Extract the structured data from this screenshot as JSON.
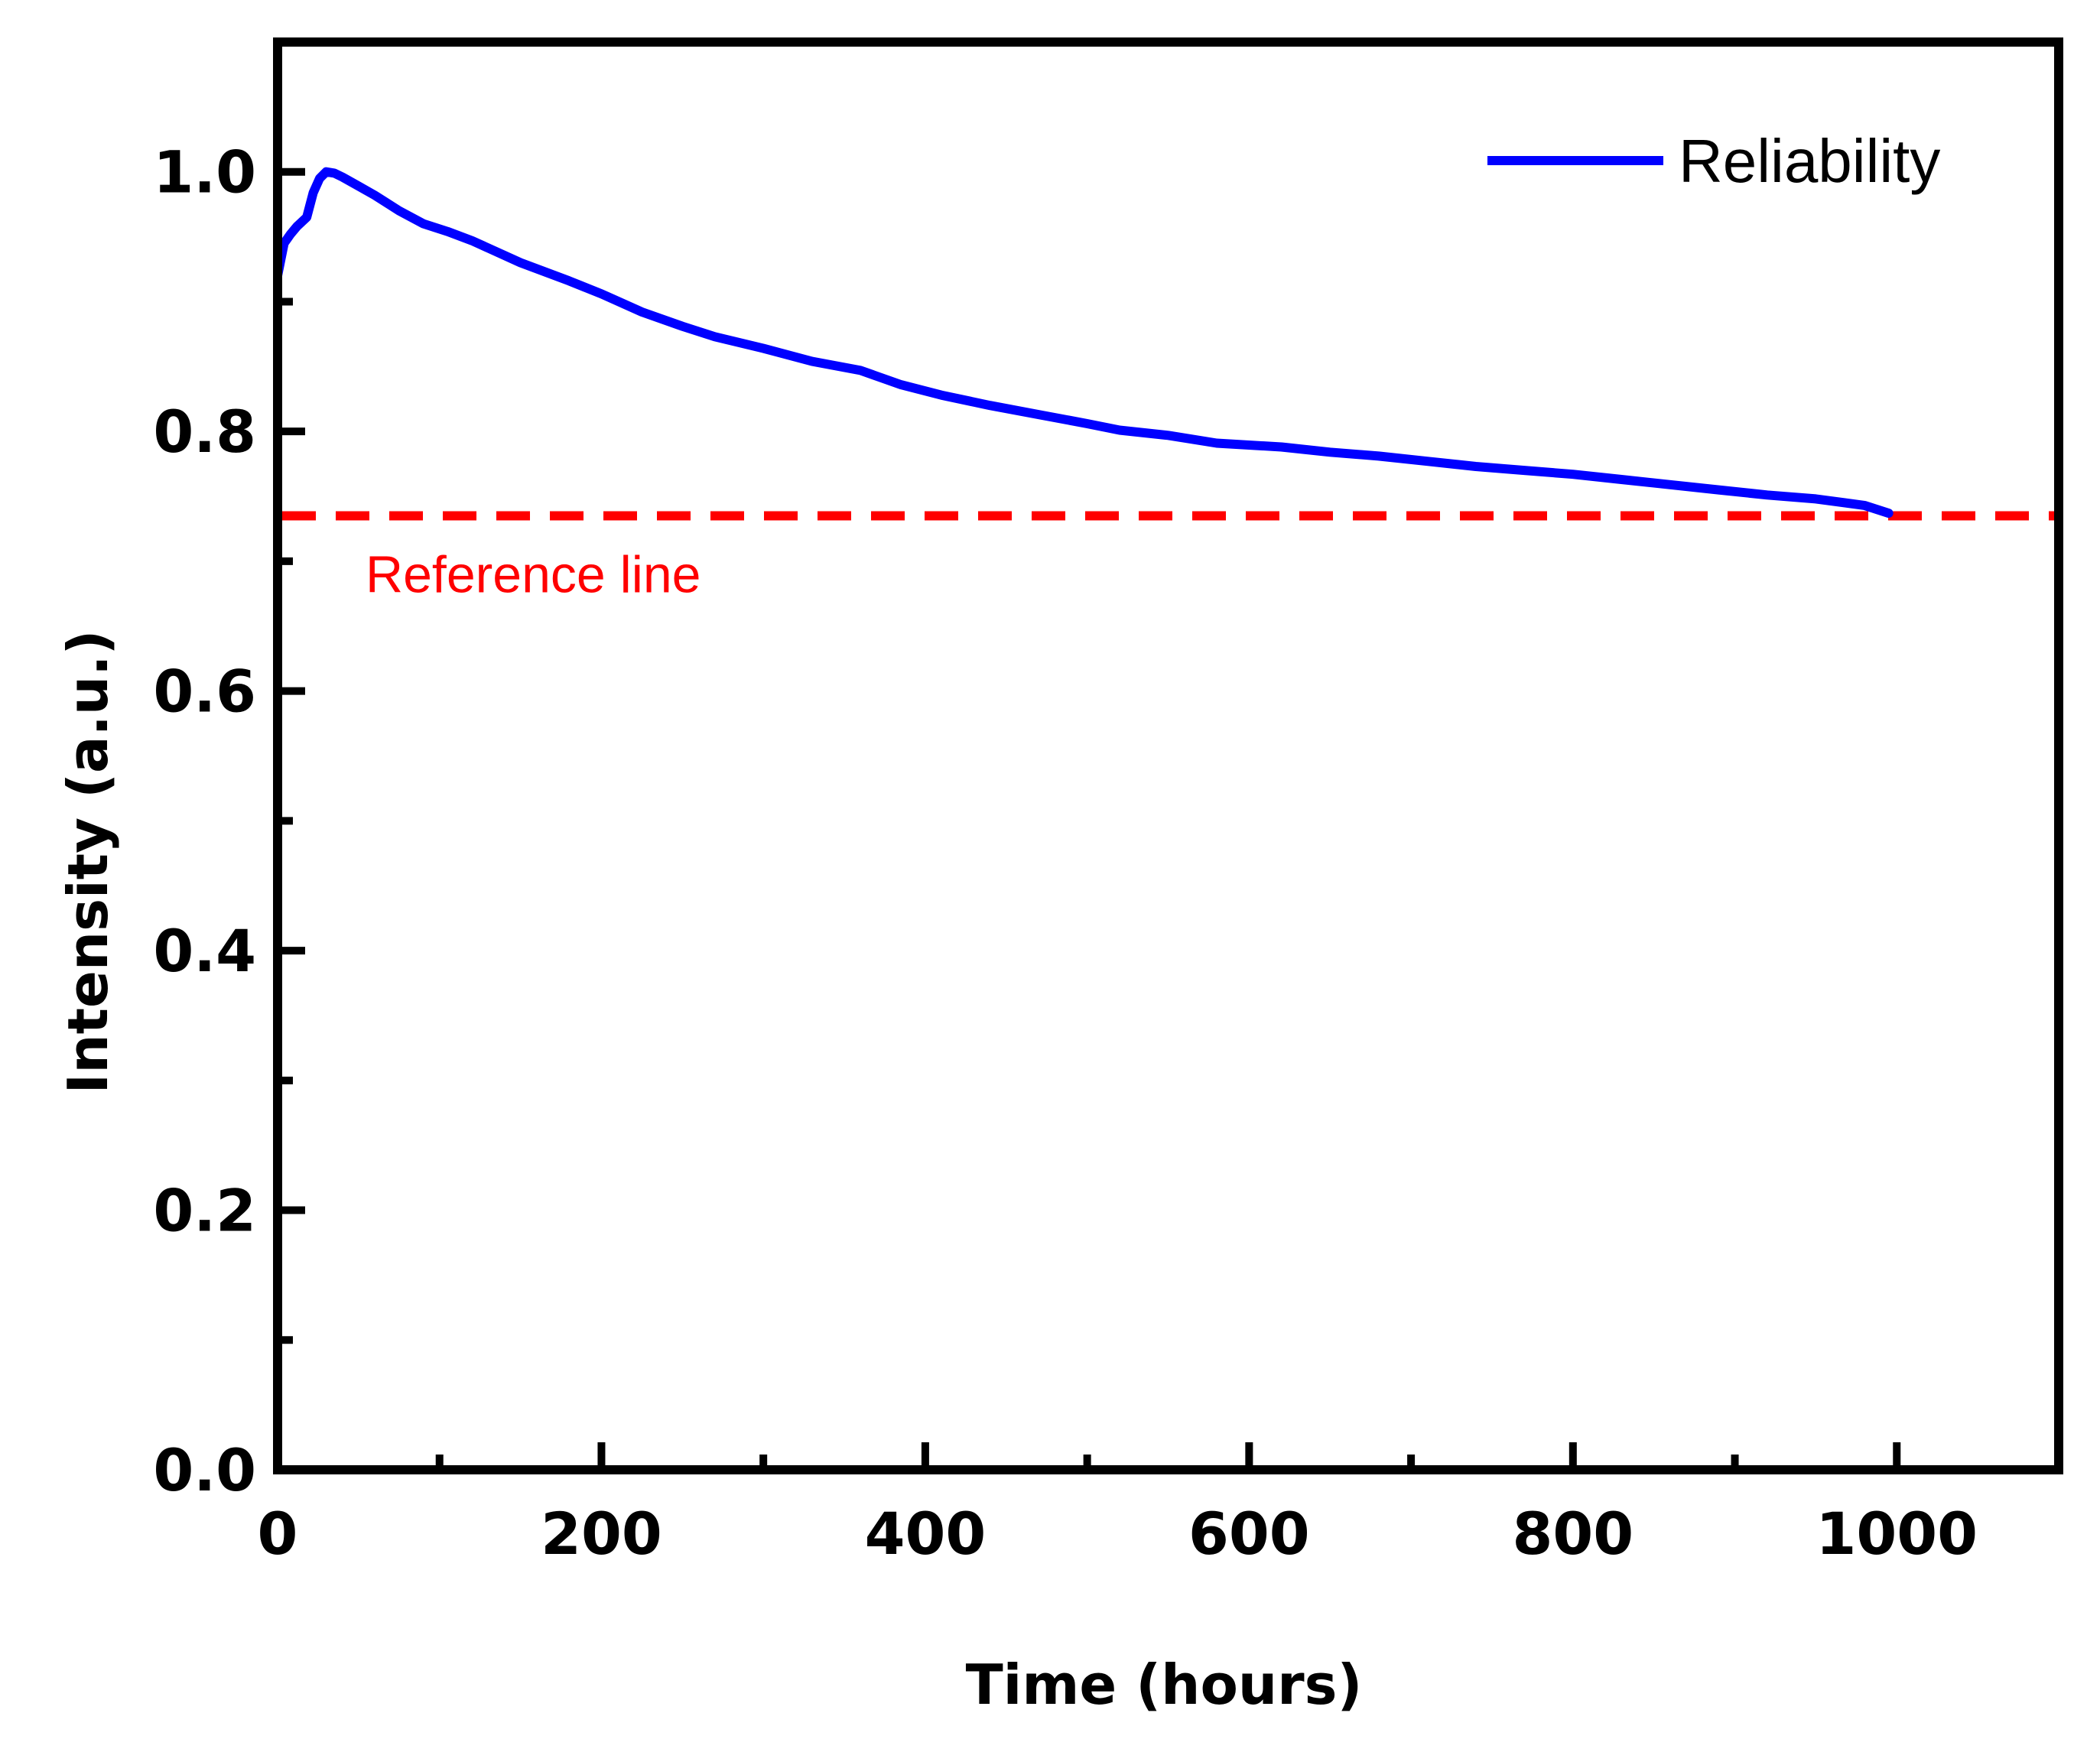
{
  "chart_data": {
    "type": "line",
    "xlabel": "Time (hours)",
    "ylabel": "Intensity (a.u.)",
    "xlim": [
      0,
      1100
    ],
    "ylim": [
      0,
      1.1
    ],
    "x_major_ticks": [
      0,
      200,
      400,
      600,
      800,
      1000
    ],
    "x_tick_labels": [
      "0",
      "200",
      "400",
      "600",
      "800",
      "1000"
    ],
    "x_minor_ticks": [
      100,
      300,
      500,
      700,
      900
    ],
    "y_major_ticks": [
      0,
      0.2,
      0.4,
      0.6,
      0.8,
      1.0
    ],
    "y_tick_labels": [
      "0.0",
      "0.2",
      "0.4",
      "0.6",
      "0.8",
      "1.0"
    ],
    "y_minor_ticks": [
      0.1,
      0.3,
      0.5,
      0.7,
      0.9
    ],
    "grid": false,
    "legend_position": "top-right",
    "series": [
      {
        "name": "Reliability",
        "color": "#0000ff",
        "x": [
          0,
          4,
          8,
          12,
          18,
          22,
          26,
          30,
          35,
          40,
          50,
          60,
          75,
          90,
          105,
          120,
          150,
          180,
          200,
          225,
          250,
          270,
          300,
          330,
          360,
          385,
          410,
          440,
          470,
          500,
          520,
          550,
          580,
          620,
          650,
          680,
          710,
          740,
          770,
          800,
          830,
          860,
          890,
          920,
          950,
          980,
          995
        ],
        "values": [
          0.92,
          0.945,
          0.952,
          0.958,
          0.965,
          0.984,
          0.995,
          1.0,
          0.999,
          0.996,
          0.989,
          0.982,
          0.97,
          0.96,
          0.954,
          0.947,
          0.93,
          0.916,
          0.906,
          0.892,
          0.881,
          0.873,
          0.864,
          0.854,
          0.847,
          0.836,
          0.828,
          0.82,
          0.813,
          0.806,
          0.801,
          0.797,
          0.791,
          0.788,
          0.784,
          0.781,
          0.777,
          0.773,
          0.77,
          0.767,
          0.763,
          0.759,
          0.755,
          0.751,
          0.748,
          0.743,
          0.737
        ]
      }
    ],
    "reference_line": {
      "y": 0.735,
      "color": "#ff0000",
      "label": "Reference line",
      "style": "dashed"
    }
  }
}
